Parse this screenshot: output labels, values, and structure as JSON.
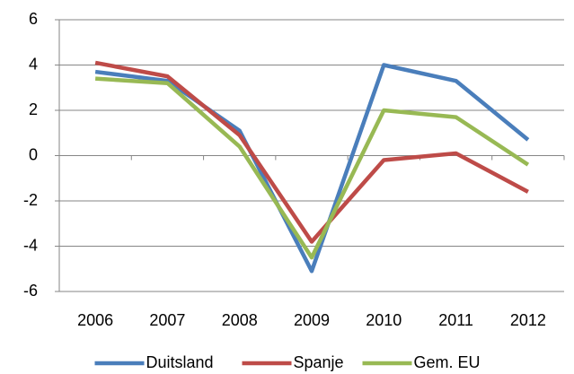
{
  "chart_data": {
    "type": "line",
    "categories": [
      "2006",
      "2007",
      "2008",
      "2009",
      "2010",
      "2011",
      "2012"
    ],
    "series": [
      {
        "name": "Duitsland",
        "color": "#4a7ebb",
        "values": [
          3.7,
          3.3,
          1.1,
          -5.1,
          4.0,
          3.3,
          0.7
        ]
      },
      {
        "name": "Spanje",
        "color": "#be4b48",
        "values": [
          4.1,
          3.5,
          0.9,
          -3.8,
          -0.2,
          0.1,
          -1.6
        ]
      },
      {
        "name": "Gem. EU",
        "color": "#98b954",
        "values": [
          3.4,
          3.2,
          0.4,
          -4.5,
          2.0,
          1.7,
          -0.4
        ]
      }
    ],
    "ylim": [
      -6,
      6
    ],
    "yticks": [
      -6,
      -4,
      -2,
      0,
      2,
      4,
      6
    ],
    "grid": true,
    "legend": "bottom"
  }
}
